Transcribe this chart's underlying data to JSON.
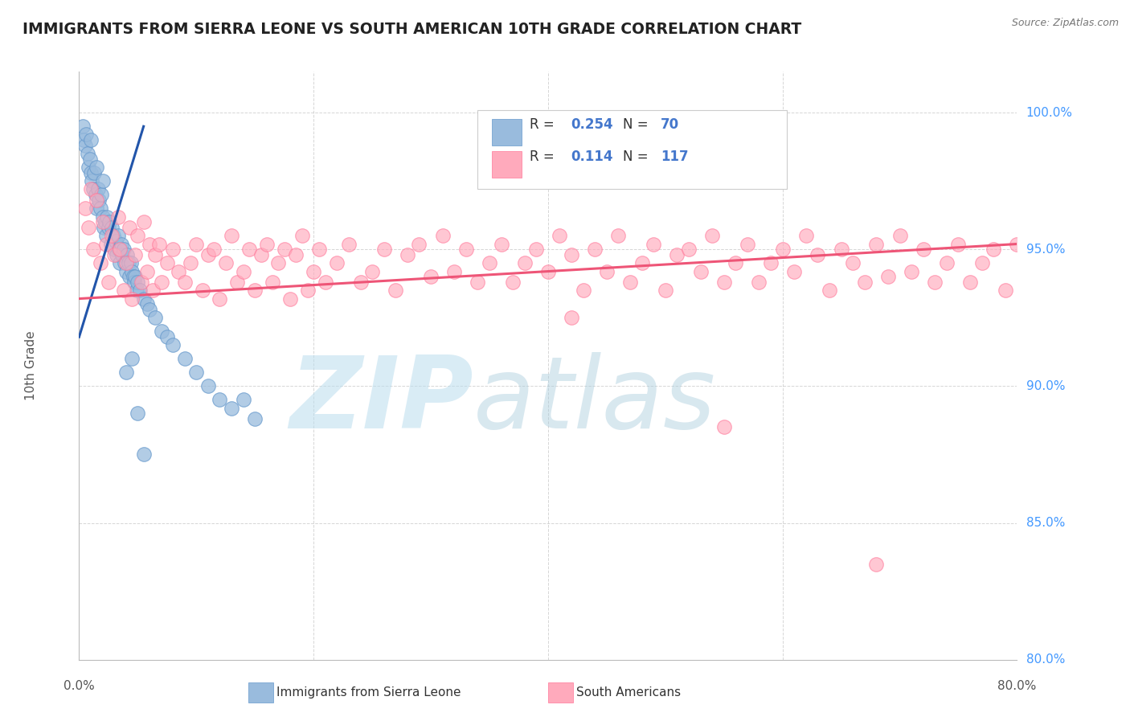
{
  "title": "IMMIGRANTS FROM SIERRA LEONE VS SOUTH AMERICAN 10TH GRADE CORRELATION CHART",
  "source": "Source: ZipAtlas.com",
  "ylabel": "10th Grade",
  "xmin": 0.0,
  "xmax": 80.0,
  "ymin": 80.0,
  "ymax": 101.5,
  "blue_color": "#99BBDD",
  "pink_color": "#FFAABC",
  "blue_line_color": "#2255AA",
  "pink_line_color": "#EE5577",
  "blue_edge_color": "#6699CC",
  "pink_edge_color": "#FF7799",
  "watermark_zip": "ZIP",
  "watermark_atlas": "atlas",
  "watermark_color_zip": "#BBDDEE",
  "watermark_color_atlas": "#AACCDD",
  "blue_scatter_x": [
    0.3,
    0.4,
    0.5,
    0.6,
    0.7,
    0.8,
    0.9,
    1.0,
    1.0,
    1.1,
    1.2,
    1.3,
    1.4,
    1.5,
    1.5,
    1.6,
    1.7,
    1.8,
    1.9,
    2.0,
    2.0,
    2.1,
    2.2,
    2.3,
    2.4,
    2.5,
    2.6,
    2.7,
    2.8,
    2.9,
    3.0,
    3.1,
    3.2,
    3.3,
    3.4,
    3.5,
    3.6,
    3.7,
    3.8,
    3.9,
    4.0,
    4.1,
    4.2,
    4.3,
    4.4,
    4.5,
    4.6,
    4.7,
    4.8,
    4.9,
    5.0,
    5.2,
    5.5,
    5.8,
    6.0,
    6.5,
    7.0,
    7.5,
    8.0,
    9.0,
    10.0,
    11.0,
    12.0,
    13.0,
    14.0,
    15.0,
    4.0,
    4.5,
    5.0,
    5.5
  ],
  "blue_scatter_y": [
    99.5,
    99.0,
    98.8,
    99.2,
    98.5,
    98.0,
    98.3,
    97.8,
    99.0,
    97.5,
    97.2,
    97.8,
    97.0,
    96.5,
    98.0,
    97.2,
    96.8,
    96.5,
    97.0,
    96.2,
    97.5,
    95.8,
    96.0,
    95.5,
    96.2,
    95.8,
    96.0,
    95.2,
    95.8,
    95.5,
    95.0,
    95.3,
    94.8,
    95.5,
    95.0,
    94.5,
    95.2,
    94.8,
    95.0,
    94.5,
    94.2,
    94.8,
    94.5,
    94.0,
    94.5,
    94.2,
    94.0,
    93.8,
    94.0,
    93.5,
    93.8,
    93.5,
    93.2,
    93.0,
    92.8,
    92.5,
    92.0,
    91.8,
    91.5,
    91.0,
    90.5,
    90.0,
    89.5,
    89.2,
    89.5,
    88.8,
    90.5,
    91.0,
    89.0,
    87.5
  ],
  "pink_scatter_x": [
    0.5,
    0.8,
    1.0,
    1.2,
    1.5,
    1.8,
    2.0,
    2.3,
    2.5,
    2.8,
    3.0,
    3.3,
    3.5,
    3.8,
    4.0,
    4.3,
    4.5,
    4.8,
    5.0,
    5.3,
    5.5,
    5.8,
    6.0,
    6.3,
    6.5,
    6.8,
    7.0,
    7.5,
    8.0,
    8.5,
    9.0,
    9.5,
    10.0,
    10.5,
    11.0,
    11.5,
    12.0,
    12.5,
    13.0,
    13.5,
    14.0,
    14.5,
    15.0,
    15.5,
    16.0,
    16.5,
    17.0,
    17.5,
    18.0,
    18.5,
    19.0,
    19.5,
    20.0,
    20.5,
    21.0,
    22.0,
    23.0,
    24.0,
    25.0,
    26.0,
    27.0,
    28.0,
    29.0,
    30.0,
    31.0,
    32.0,
    33.0,
    34.0,
    35.0,
    36.0,
    37.0,
    38.0,
    39.0,
    40.0,
    41.0,
    42.0,
    43.0,
    44.0,
    45.0,
    46.0,
    47.0,
    48.0,
    49.0,
    50.0,
    51.0,
    52.0,
    53.0,
    54.0,
    55.0,
    56.0,
    57.0,
    58.0,
    59.0,
    60.0,
    61.0,
    62.0,
    63.0,
    64.0,
    65.0,
    66.0,
    67.0,
    68.0,
    69.0,
    70.0,
    71.0,
    72.0,
    73.0,
    74.0,
    75.0,
    76.0,
    77.0,
    78.0,
    79.0,
    80.0,
    42.0,
    55.0,
    68.0
  ],
  "pink_scatter_y": [
    96.5,
    95.8,
    97.2,
    95.0,
    96.8,
    94.5,
    96.0,
    95.2,
    93.8,
    95.5,
    94.8,
    96.2,
    95.0,
    93.5,
    94.5,
    95.8,
    93.2,
    94.8,
    95.5,
    93.8,
    96.0,
    94.2,
    95.2,
    93.5,
    94.8,
    95.2,
    93.8,
    94.5,
    95.0,
    94.2,
    93.8,
    94.5,
    95.2,
    93.5,
    94.8,
    95.0,
    93.2,
    94.5,
    95.5,
    93.8,
    94.2,
    95.0,
    93.5,
    94.8,
    95.2,
    93.8,
    94.5,
    95.0,
    93.2,
    94.8,
    95.5,
    93.5,
    94.2,
    95.0,
    93.8,
    94.5,
    95.2,
    93.8,
    94.2,
    95.0,
    93.5,
    94.8,
    95.2,
    94.0,
    95.5,
    94.2,
    95.0,
    93.8,
    94.5,
    95.2,
    93.8,
    94.5,
    95.0,
    94.2,
    95.5,
    94.8,
    93.5,
    95.0,
    94.2,
    95.5,
    93.8,
    94.5,
    95.2,
    93.5,
    94.8,
    95.0,
    94.2,
    95.5,
    93.8,
    94.5,
    95.2,
    93.8,
    94.5,
    95.0,
    94.2,
    95.5,
    94.8,
    93.5,
    95.0,
    94.5,
    93.8,
    95.2,
    94.0,
    95.5,
    94.2,
    95.0,
    93.8,
    94.5,
    95.2,
    93.8,
    94.5,
    95.0,
    93.5,
    95.2,
    92.5,
    88.5,
    83.5
  ],
  "blue_trendline_x": [
    0.0,
    5.5
  ],
  "blue_trendline_y": [
    91.8,
    99.5
  ],
  "pink_trendline_x": [
    0.0,
    80.0
  ],
  "pink_trendline_y": [
    93.2,
    95.2
  ],
  "ytick_labels": [
    "80.0%",
    "85.0%",
    "90.0%",
    "95.0%",
    "100.0%"
  ],
  "ytick_vals": [
    80,
    85,
    90,
    95,
    100
  ],
  "xtick_vals": [
    0,
    20,
    40,
    60,
    80
  ],
  "right_label_color": "#4499FF",
  "axis_label_color": "#555555",
  "grid_color": "#CCCCCC",
  "legend_blue_r_val": "0.254",
  "legend_blue_n_val": "70",
  "legend_pink_r_val": "0.114",
  "legend_pink_n_val": "117",
  "legend_val_color": "#4477CC",
  "legend_label_color": "#333333"
}
